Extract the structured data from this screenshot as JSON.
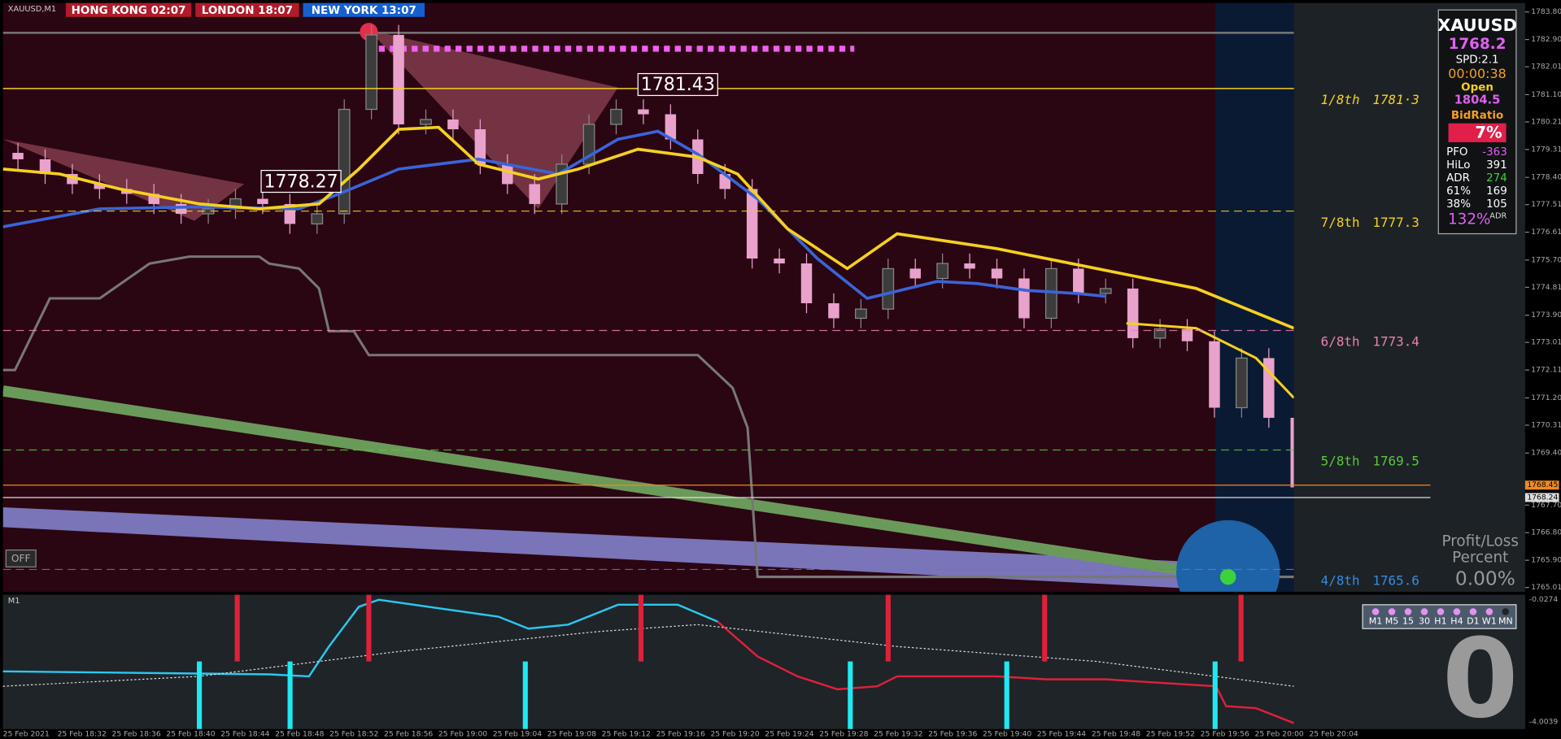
{
  "chart_data": {
    "type": "candlestick",
    "symbol": "XAUUSD,M1",
    "open": [
      1779.2,
      1778.99,
      1778.51,
      1778.18,
      1778.02,
      1777.86,
      1777.53,
      1777.21,
      1777.37,
      1777.7,
      1777.53,
      1776.88,
      1777.21,
      1780.62,
      1783.05,
      1780.13,
      1780.29,
      1779.97,
      1778.83,
      1778.18,
      1777.53,
      1778.83,
      1780.13,
      1780.62,
      1780.46,
      1779.64,
      1778.51,
      1778.02,
      1775.75,
      1775.59,
      1774.29,
      1773.8,
      1774.1,
      1775.42,
      1775.1,
      1775.59,
      1775.42,
      1775.1,
      1773.8,
      1775.42,
      1774.61,
      1774.77,
      1773.15,
      1773.45,
      1773.05,
      1770.88,
      1772.5,
      1770.55
    ],
    "close": [
      1778.99,
      1778.51,
      1778.18,
      1778.02,
      1777.86,
      1777.53,
      1777.21,
      1777.37,
      1777.7,
      1777.53,
      1776.88,
      1777.21,
      1780.62,
      1783.05,
      1780.13,
      1780.29,
      1779.97,
      1778.83,
      1778.18,
      1777.53,
      1778.83,
      1780.13,
      1780.62,
      1780.46,
      1779.64,
      1778.51,
      1778.02,
      1775.75,
      1775.59,
      1774.29,
      1773.8,
      1774.1,
      1775.42,
      1775.1,
      1775.59,
      1775.42,
      1775.1,
      1773.8,
      1775.42,
      1774.61,
      1774.77,
      1773.15,
      1773.45,
      1773.05,
      1770.88,
      1772.5,
      1770.55,
      1768.28
    ],
    "up_color": "#3c3c3c",
    "down_color": "#e8a2cc",
    "ylim": [
      1764.87,
      1784.19
    ],
    "yticks": [
      {
        "value": 1783.8,
        "label": "1783.80"
      },
      {
        "value": 1782.9,
        "label": "1782.90"
      },
      1782.01,
      {
        "value": 1781.1,
        "label": "1781.10"
      },
      1780.21,
      1779.31,
      {
        "value": 1778.4,
        "label": "1778.40"
      },
      1777.51,
      1776.61,
      {
        "value": 1775.7,
        "label": "1775.70"
      },
      1774.81,
      {
        "value": 1773.9,
        "label": "1773.90"
      },
      1773.01,
      1772.11,
      {
        "value": 1771.2,
        "label": "1771.20"
      },
      1770.31,
      {
        "value": 1769.4,
        "label": "1769.40"
      },
      {
        "value": 1767.7,
        "label": "1767.70"
      },
      {
        "value": 1766.8,
        "label": "1766.80"
      },
      {
        "value": 1765.9,
        "label": "1765.90"
      },
      1765.01
    ],
    "x_labels": [
      "25 Feb 2021",
      "25 Feb 18:32",
      "25 Feb 18:36",
      "25 Feb 18:40",
      "25 Feb 18:44",
      "25 Feb 18:48",
      "25 Feb 18:52",
      "25 Feb 18:56",
      "25 Feb 19:00",
      "25 Feb 19:04",
      "25 Feb 19:08",
      "25 Feb 19:12",
      "25 Feb 19:16",
      "25 Feb 19:20",
      "25 Feb 19:24",
      "25 Feb 19:28",
      "25 Feb 19:32",
      "25 Feb 19:36",
      "25 Feb 19:40",
      "25 Feb 19:44",
      "25 Feb 19:48",
      "25 Feb 19:52",
      "25 Feb 19:56",
      "25 Feb 20:00",
      "25 Feb 20:04"
    ],
    "levels": {
      "names": [
        "1/8th",
        "7/8th",
        "6/8th",
        "5/8th",
        "4/8th"
      ],
      "values": [
        1781.3,
        1777.3,
        1773.4,
        1769.5,
        1765.6
      ],
      "value_labels": [
        "1781·3",
        "1777.3",
        "1773.4",
        "1769.5",
        "1765.6"
      ],
      "colors": [
        "#f5d020",
        "#f5d020",
        "#e882b4",
        "#58c838",
        "#3a8ae0"
      ]
    },
    "price_labels": [
      1778.27,
      1781.43
    ],
    "current_prices": [
      1768.45,
      1768.24
    ]
  },
  "clocks": [
    "HONG KONG 02:07",
    "LONDON  18:07",
    "NEW YORK 13:07"
  ],
  "info_panel": {
    "symbol": "XAUUSD",
    "price": "1768.2",
    "spread": "SPD:2.1",
    "timer": "00:00:38",
    "open_label": "Open",
    "open": "1804.5",
    "bid_ratio_label": "BidRatio",
    "bid_ratio": "7%",
    "rows": [
      [
        "PFO",
        -363
      ],
      [
        "HiLo",
        391
      ],
      [
        "ADR",
        274
      ],
      [
        "61%",
        169
      ],
      [
        "38%",
        105
      ]
    ],
    "adr_pct": "132%",
    "adr_label": "ADR"
  },
  "off_button": "OFF",
  "profit_loss": {
    "title1": "Profit/Loss",
    "title2": "Percent",
    "value": "0.00%"
  },
  "indicator": {
    "name": "M1",
    "ylim": [
      -4.0039,
      -0.0274
    ],
    "yticks": [
      -0.0274,
      -4.0039
    ],
    "timeframes": [
      "M1",
      "M5",
      "15",
      "30",
      "H1",
      "H4",
      "D1",
      "W1",
      "MN"
    ],
    "big_value": "0"
  }
}
